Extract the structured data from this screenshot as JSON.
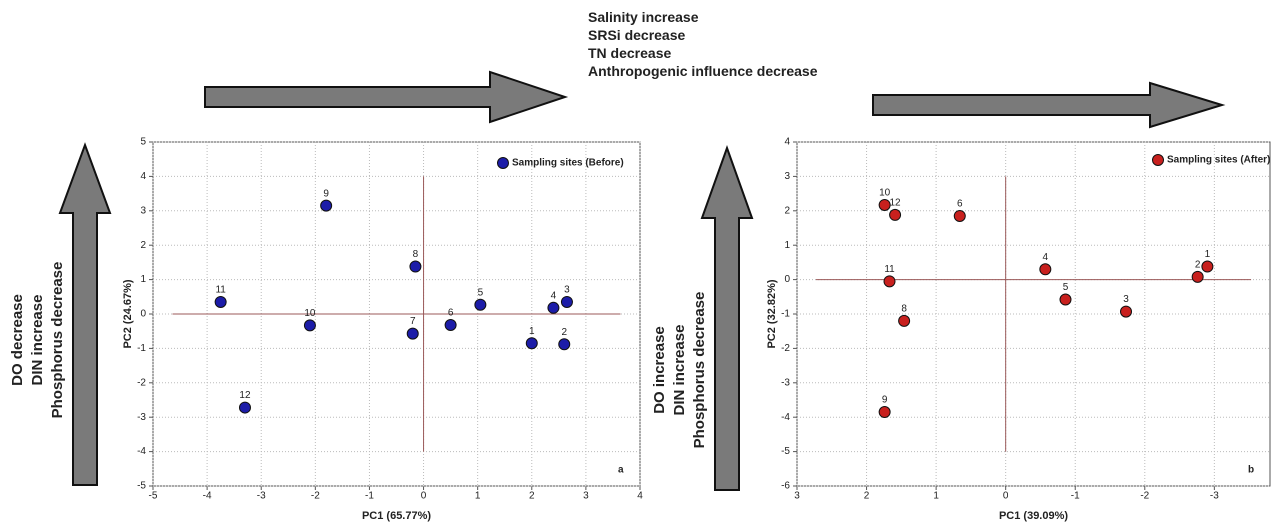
{
  "chart_data": [
    {
      "type": "scatter",
      "panel_label": "a",
      "annotations": [
        "Salinity increase",
        "SRSi decrease",
        "TN decrease",
        "Anthropogenic influence decrease"
      ],
      "side_annotations": [
        "DO decrease",
        "DIN increase",
        "Phosphorus decrease"
      ],
      "x_label": "PC1 (65.77%)",
      "y_label": "PC2 (24.67%)",
      "xlim": [
        -5,
        4
      ],
      "xticks": [
        -5,
        -4,
        -3,
        -2,
        -1,
        0,
        1,
        2,
        3,
        4
      ],
      "ylim": [
        -5,
        5
      ],
      "yticks": [
        -5,
        -4,
        -3,
        -2,
        -1,
        0,
        1,
        2,
        3,
        4,
        5
      ],
      "grid": true,
      "reference_lines": {
        "x": 0,
        "y": 0
      },
      "series": [
        {
          "name": "Sampling sites (Before)",
          "color": "#1c1ca8",
          "labels": [
            "1",
            "2",
            "3",
            "4",
            "5",
            "6",
            "7",
            "8",
            "9",
            "10",
            "11",
            "12"
          ],
          "x": [
            2.0,
            2.6,
            2.65,
            2.4,
            1.05,
            0.5,
            -0.2,
            -0.15,
            -1.8,
            -2.1,
            -3.75,
            -3.3
          ],
          "y": [
            -0.85,
            -0.88,
            0.35,
            0.18,
            0.27,
            -0.32,
            -0.57,
            1.38,
            3.15,
            -0.33,
            0.35,
            -2.72
          ]
        }
      ]
    },
    {
      "type": "scatter",
      "panel_label": "b",
      "side_annotations": [
        "DO increase",
        "DIN increase",
        "Phosphorus decrease"
      ],
      "x_label": "PC1 (39.09%)",
      "y_label": "PC2 (32.82%)",
      "xlim": [
        3,
        -3.8
      ],
      "xticks": [
        3,
        2,
        1,
        0,
        -1,
        -2,
        -3
      ],
      "ylim": [
        -6,
        4
      ],
      "yticks": [
        4,
        3,
        2,
        1,
        0,
        -1,
        -2,
        -3,
        -4,
        -5,
        -6
      ],
      "grid": true,
      "reference_lines": {
        "x": 0,
        "y": 0
      },
      "series": [
        {
          "name": "Sampling sites (After)",
          "color": "#c8201e",
          "labels": [
            "1",
            "2",
            "3",
            "4",
            "5",
            "6",
            "8",
            "9",
            "10",
            "11",
            "12"
          ],
          "x": [
            -2.9,
            -2.76,
            -1.73,
            -0.57,
            -0.86,
            0.66,
            1.46,
            1.74,
            1.74,
            1.67,
            1.59
          ],
          "y": [
            0.38,
            0.08,
            -0.93,
            0.3,
            -0.58,
            1.85,
            -1.2,
            -3.85,
            2.17,
            -0.05,
            1.88
          ]
        }
      ]
    }
  ]
}
